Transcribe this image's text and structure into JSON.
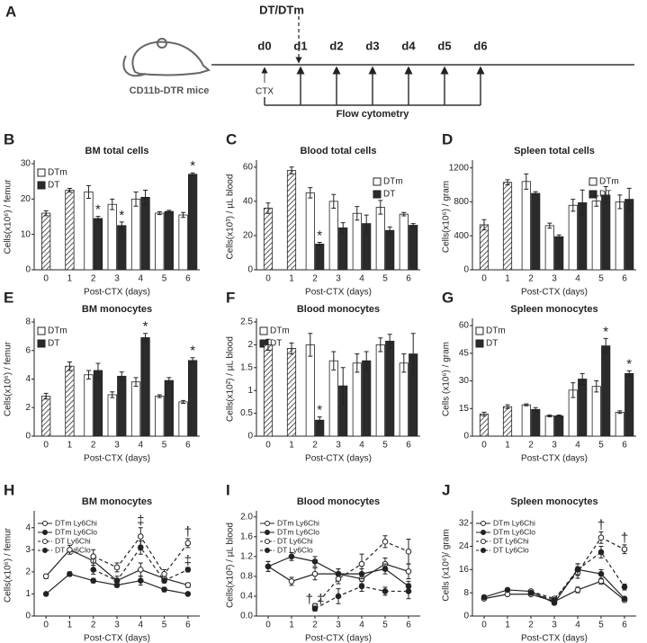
{
  "timeline": {
    "panel": "A",
    "treatment": "DT/DTm",
    "days": [
      "d0",
      "d1",
      "d2",
      "d3",
      "d4",
      "d5",
      "d6"
    ],
    "mouse": "CD11b-DTR mice",
    "injection": "CTX",
    "readout": "Flow cytometry"
  },
  "chart_data": [
    {
      "type": "bar",
      "panel": "B",
      "title": "BM  total cells",
      "ylabel": "Cells(x10⁶) / femur",
      "xlabel": "Post-CTX (days)",
      "categories": [
        "0",
        "1",
        "2",
        "3",
        "4",
        "5",
        "6"
      ],
      "ylim": [
        0,
        30
      ],
      "yticks": [
        0,
        10,
        20,
        30
      ],
      "legend": "upper left",
      "series": [
        {
          "color": "#444444",
          "hatched": true,
          "values": [
            16,
            22.5,
            null,
            null,
            null,
            null,
            null
          ],
          "errors": [
            0.7,
            0.5,
            null,
            null,
            null,
            null,
            null
          ]
        },
        {
          "name": "DTm",
          "color": "#ffffff",
          "values": [
            null,
            null,
            22,
            18.5,
            20,
            16,
            15.5
          ],
          "errors": [
            null,
            null,
            1.8,
            1.5,
            2,
            0.4,
            0.7
          ]
        },
        {
          "name": "DT",
          "color": "#2b2b2b",
          "values": [
            null,
            null,
            14.5,
            12.5,
            20.5,
            16.5,
            27
          ],
          "errors": [
            null,
            null,
            0.6,
            1,
            2,
            0.3,
            0.4
          ],
          "flags": [
            null,
            null,
            "*",
            "*",
            null,
            null,
            "*"
          ]
        }
      ]
    },
    {
      "type": "bar",
      "panel": "C",
      "title": "Blood  total cells",
      "ylabel": "Cells(x10³) / µL blood",
      "xlabel": "Post-CTX (days)",
      "categories": [
        "0",
        "1",
        "2",
        "3",
        "4",
        "5",
        "6"
      ],
      "ylim": [
        0,
        62
      ],
      "yticks": [
        0,
        20,
        40,
        60
      ],
      "legend": "upper right",
      "series": [
        {
          "color": "#444444",
          "hatched": true,
          "values": [
            36,
            58,
            null,
            null,
            null,
            null,
            null
          ],
          "errors": [
            3,
            2,
            null,
            null,
            null,
            null,
            null
          ]
        },
        {
          "name": "DTm",
          "color": "#ffffff",
          "values": [
            null,
            null,
            45,
            40,
            33,
            36.5,
            32.5
          ],
          "errors": [
            null,
            null,
            3,
            4,
            4,
            4,
            1
          ]
        },
        {
          "name": "DT",
          "color": "#2b2b2b",
          "values": [
            null,
            null,
            15,
            24.5,
            27,
            23,
            26
          ],
          "errors": [
            null,
            null,
            1,
            3,
            5,
            2,
            1
          ],
          "flags": [
            null,
            null,
            "*",
            null,
            null,
            null,
            null
          ]
        }
      ]
    },
    {
      "type": "bar",
      "panel": "D",
      "title": "Spleen total cells",
      "ylabel": "Cells(x10⁶) / gram",
      "xlabel": "Post-CTX (days)",
      "categories": [
        "0",
        "1",
        "2",
        "3",
        "4",
        "5",
        "6"
      ],
      "ylim": [
        0,
        1250
      ],
      "yticks": [
        0,
        400,
        800,
        1200
      ],
      "legend": "upper right",
      "series": [
        {
          "color": "#444444",
          "hatched": true,
          "values": [
            530,
            1030,
            null,
            null,
            null,
            null,
            null
          ],
          "errors": [
            60,
            30,
            null,
            null,
            null,
            null,
            null
          ]
        },
        {
          "name": "DTm",
          "color": "#ffffff",
          "values": [
            null,
            null,
            1040,
            520,
            760,
            810,
            800
          ],
          "errors": [
            null,
            null,
            90,
            30,
            70,
            60,
            80
          ]
        },
        {
          "name": "DT",
          "color": "#2b2b2b",
          "values": [
            null,
            null,
            900,
            390,
            790,
            880,
            830
          ],
          "errors": [
            null,
            null,
            20,
            20,
            150,
            100,
            130
          ]
        }
      ]
    },
    {
      "type": "bar",
      "panel": "E",
      "title": "BM  monocytes",
      "ylabel": "Cells(x10⁶) / femur",
      "xlabel": "Post-CTX (days)",
      "categories": [
        "0",
        "1",
        "2",
        "3",
        "4",
        "5",
        "6"
      ],
      "ylim": [
        0,
        8
      ],
      "yticks": [
        0,
        2,
        4,
        6,
        8
      ],
      "legend": "upper left",
      "series": [
        {
          "color": "#444444",
          "hatched": true,
          "values": [
            2.8,
            4.9,
            null,
            null,
            null,
            null,
            null
          ],
          "errors": [
            0.2,
            0.3,
            null,
            null,
            null,
            null,
            null
          ]
        },
        {
          "name": "DTm",
          "color": "#ffffff",
          "values": [
            null,
            null,
            4.3,
            2.9,
            3.8,
            2.8,
            2.4
          ],
          "errors": [
            null,
            null,
            0.3,
            0.2,
            0.3,
            0.1,
            0.1
          ]
        },
        {
          "name": "DT",
          "color": "#2b2b2b",
          "values": [
            null,
            null,
            4.6,
            4.2,
            6.9,
            3.9,
            5.3
          ],
          "errors": [
            null,
            null,
            0.5,
            0.3,
            0.3,
            0.2,
            0.2
          ],
          "flags": [
            null,
            null,
            null,
            null,
            "*",
            null,
            "*"
          ]
        }
      ]
    },
    {
      "type": "bar",
      "panel": "F",
      "title": "Blood monocytes",
      "ylabel": "Cells(x10²) / µL blood",
      "xlabel": "Post-CTX (days)",
      "categories": [
        "0",
        "1",
        "2",
        "3",
        "4",
        "5",
        "6"
      ],
      "ylim": [
        0,
        2.5
      ],
      "yticks": [
        0,
        0.5,
        1,
        1.5,
        2,
        2.5
      ],
      "legend": "upper left",
      "series": [
        {
          "color": "#444444",
          "hatched": true,
          "values": [
            2.0,
            1.92,
            null,
            null,
            null,
            null,
            null
          ],
          "errors": [
            0.12,
            0.12,
            null,
            null,
            null,
            null,
            null
          ]
        },
        {
          "name": "DTm",
          "color": "#ffffff",
          "values": [
            null,
            null,
            2.0,
            1.65,
            1.6,
            2.0,
            1.6
          ],
          "errors": [
            null,
            null,
            0.25,
            0.2,
            0.2,
            0.15,
            0.2
          ]
        },
        {
          "name": "DT",
          "color": "#2b2b2b",
          "values": [
            null,
            null,
            0.35,
            1.1,
            1.65,
            2.08,
            1.8
          ],
          "errors": [
            null,
            null,
            0.07,
            0.4,
            0.2,
            0.15,
            0.45
          ],
          "flags": [
            null,
            null,
            "*",
            null,
            null,
            null,
            null
          ]
        }
      ]
    },
    {
      "type": "bar",
      "panel": "G",
      "title": "Spleen monocytes",
      "ylabel": "Cells (x10⁶) / gram",
      "xlabel": "Post-CTX (days)",
      "categories": [
        "0",
        "1",
        "2",
        "3",
        "4",
        "5",
        "6"
      ],
      "ylim": [
        0,
        62
      ],
      "yticks": [
        0,
        15,
        30,
        45,
        60
      ],
      "legend": "upper left",
      "series": [
        {
          "color": "#444444",
          "hatched": true,
          "values": [
            12,
            16,
            null,
            null,
            null,
            null,
            null
          ],
          "errors": [
            1,
            1,
            null,
            null,
            null,
            null,
            null
          ]
        },
        {
          "name": "DTm",
          "color": "#ffffff",
          "values": [
            null,
            null,
            17,
            11,
            25,
            27,
            13
          ],
          "errors": [
            null,
            null,
            0.5,
            0.5,
            4,
            3,
            0.7
          ]
        },
        {
          "name": "DT",
          "color": "#2b2b2b",
          "values": [
            null,
            null,
            14.5,
            11,
            31,
            49,
            34
          ],
          "errors": [
            null,
            null,
            1,
            0.5,
            3,
            4,
            1.5
          ],
          "flags": [
            null,
            null,
            null,
            null,
            null,
            "*",
            "*"
          ]
        }
      ]
    },
    {
      "type": "line",
      "panel": "H",
      "title": "BM monocytes",
      "ylabel": "Cells(x10⁶) / femur",
      "xlabel": "Post-CTX (days)",
      "x": [
        0,
        1,
        2,
        3,
        4,
        5,
        6
      ],
      "xlim": [
        -0.5,
        6.5
      ],
      "xticks": [
        0,
        1,
        2,
        3,
        4,
        5,
        6
      ],
      "ylim": [
        0,
        4.6
      ],
      "yticks": [
        0,
        1,
        2,
        3,
        4
      ],
      "legend": "upper left",
      "series": [
        {
          "name": "DTm Ly6Chi",
          "color": "#222222",
          "marker": "open",
          "dashed": false,
          "values": [
            1.8,
            3.0,
            2.5,
            1.6,
            2.1,
            1.7,
            1.4
          ],
          "errors": [
            0.1,
            0.2,
            0.2,
            0.2,
            0.3,
            0.2,
            0.1
          ]
        },
        {
          "name": "DTm Ly6Clo",
          "color": "#222222",
          "marker": "filled",
          "dashed": false,
          "values": [
            1.0,
            1.9,
            1.6,
            1.4,
            1.6,
            1.2,
            1.0
          ],
          "errors": [
            0.05,
            0.1,
            0.1,
            0.1,
            0.2,
            0.1,
            0.05
          ]
        },
        {
          "name": "DT Ly6Chi",
          "color": "#222222",
          "marker": "open",
          "dashed": true,
          "values": [
            null,
            null,
            2.7,
            2.2,
            3.6,
            1.9,
            3.3
          ],
          "errors": [
            null,
            null,
            0.3,
            0.2,
            0.4,
            0.2,
            0.2
          ],
          "flags": [
            null,
            null,
            null,
            null,
            "‡",
            null,
            "†"
          ]
        },
        {
          "name": "DT Ly6Clo",
          "color": "#222222",
          "marker": "filled",
          "dashed": true,
          "values": [
            null,
            null,
            2.1,
            1.6,
            3.1,
            1.6,
            2.1
          ],
          "errors": [
            null,
            null,
            0.2,
            0.1,
            0.3,
            0.1,
            0.1
          ],
          "flags": [
            null,
            null,
            null,
            null,
            null,
            null,
            "‡"
          ]
        }
      ]
    },
    {
      "type": "line",
      "panel": "I",
      "title": "Blood monocytes",
      "ylabel": "Cells(x10²) / µL blood",
      "xlabel": "Post-CTX (days)",
      "x": [
        0,
        1,
        2,
        3,
        4,
        5,
        6
      ],
      "xlim": [
        -0.5,
        6.5
      ],
      "xticks": [
        0,
        1,
        2,
        3,
        4,
        5,
        6
      ],
      "ylim": [
        0,
        2.05
      ],
      "yticks": [
        {
          "value": 0,
          "label": "0.0"
        },
        {
          "value": 0.4,
          "label": "0.4"
        },
        {
          "value": 0.8,
          "label": "0.8"
        },
        {
          "value": 1.2,
          "label": "1.2"
        },
        {
          "value": 1.6,
          "label": "1.6"
        },
        {
          "value": 2,
          "label": "2.0"
        }
      ],
      "legend": "upper left",
      "series": [
        {
          "name": "DTm Ly6Chi",
          "color": "#222222",
          "marker": "open",
          "dashed": false,
          "values": [
            1.0,
            0.7,
            0.85,
            0.85,
            0.75,
            1.05,
            0.9
          ],
          "errors": [
            0.1,
            0.08,
            0.12,
            0.1,
            0.1,
            0.12,
            0.15
          ]
        },
        {
          "name": "DTm Ly6Clo",
          "color": "#222222",
          "marker": "filled",
          "dashed": false,
          "values": [
            1.0,
            1.2,
            1.1,
            0.85,
            0.85,
            0.95,
            0.6
          ],
          "errors": [
            0.1,
            0.08,
            0.1,
            0.1,
            0.1,
            0.1,
            0.1
          ]
        },
        {
          "name": "DT Ly6Chi",
          "color": "#222222",
          "marker": "open",
          "dashed": true,
          "values": [
            null,
            null,
            0.2,
            0.75,
            1.05,
            1.5,
            1.3
          ],
          "errors": [
            null,
            null,
            0.05,
            0.1,
            0.2,
            0.12,
            0.25
          ]
        },
        {
          "name": "DT Ly6Clo",
          "color": "#222222",
          "marker": "filled",
          "dashed": true,
          "values": [
            null,
            null,
            0.15,
            0.4,
            0.6,
            0.5,
            0.5
          ],
          "errors": [
            null,
            null,
            0.05,
            0.15,
            0.1,
            0.08,
            0.15
          ],
          "flags": [
            null,
            null,
            "† ‡",
            null,
            null,
            null,
            null
          ]
        }
      ]
    },
    {
      "type": "line",
      "panel": "J",
      "title": "Spleen monocytes",
      "ylabel": "Cells (x10⁶)/ gram",
      "xlabel": "Post-CTX (days)",
      "x": [
        0,
        1,
        2,
        3,
        4,
        5,
        6
      ],
      "xlim": [
        -0.5,
        6.5
      ],
      "xticks": [
        0,
        1,
        2,
        3,
        4,
        5,
        6
      ],
      "ylim": [
        0,
        35
      ],
      "yticks": [
        0,
        8,
        16,
        24,
        32
      ],
      "legend": "upper left",
      "series": [
        {
          "name": "DTm Ly6Chi",
          "color": "#222222",
          "marker": "open",
          "dashed": false,
          "values": [
            6,
            7.5,
            7.5,
            5,
            9,
            12,
            5.5
          ],
          "errors": [
            0.5,
            0.5,
            0.5,
            0.5,
            1,
            1,
            0.5
          ]
        },
        {
          "name": "DTm Ly6Clo",
          "color": "#222222",
          "marker": "filled",
          "dashed": false,
          "values": [
            6.5,
            9,
            8.5,
            4.5,
            16,
            14.5,
            6
          ],
          "errors": [
            0.5,
            0.5,
            0.5,
            0.5,
            2,
            1.5,
            0.5
          ]
        },
        {
          "name": "DT Ly6Chi",
          "color": "#222222",
          "marker": "open",
          "dashed": true,
          "values": [
            null,
            null,
            8.5,
            6,
            15,
            27,
            23
          ],
          "errors": [
            null,
            null,
            0.5,
            0.5,
            2,
            2,
            1.5
          ],
          "flags": [
            null,
            null,
            null,
            null,
            null,
            "†",
            "†"
          ]
        },
        {
          "name": "DT Ly6Clo",
          "color": "#222222",
          "marker": "filled",
          "dashed": true,
          "values": [
            null,
            null,
            8,
            5.5,
            16,
            22,
            10
          ],
          "errors": [
            null,
            null,
            0.5,
            0.5,
            2,
            2,
            1
          ]
        }
      ]
    }
  ]
}
